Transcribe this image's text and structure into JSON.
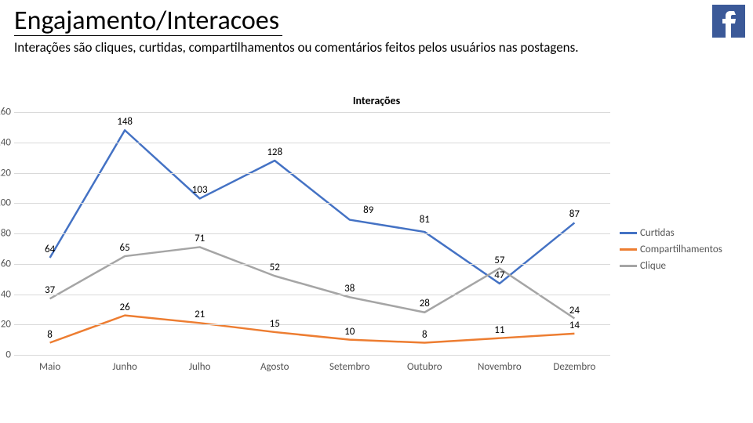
{
  "header": {
    "title": "Engajamento/Interacoes",
    "subtitle": "Interações são cliques, curtidas, compartilhamentos ou comentários feitos pelos usuários nas postagens."
  },
  "logo": {
    "bg": "#3b5998",
    "fg": "#ffffff"
  },
  "chart": {
    "type": "line",
    "title": "Interações",
    "background_color": "#ffffff",
    "grid_color": "#d9d9d9",
    "line_width": 2.5,
    "title_fontsize": 14,
    "label_fontsize": 13,
    "ylim": [
      0,
      160
    ],
    "ytick_step": 20,
    "categories": [
      "Maio",
      "Junho",
      "Julho",
      "Agosto",
      "Setembro",
      "Outubro",
      "Novembro",
      "Dezembro"
    ],
    "series": [
      {
        "name": "Curtidas",
        "color": "#4472c4",
        "values": [
          64,
          148,
          103,
          128,
          89,
          81,
          47,
          87
        ]
      },
      {
        "name": "Compartilhamentos",
        "color": "#ed7d31",
        "values": [
          8,
          26,
          21,
          15,
          10,
          8,
          11,
          14
        ]
      },
      {
        "name": "Clique",
        "color": "#a5a5a5",
        "values": [
          37,
          65,
          71,
          52,
          38,
          28,
          57,
          24
        ]
      }
    ],
    "data_label_nudge": {
      "0,4": [
        24,
        2
      ],
      "0,5": [
        0,
        5
      ],
      "2,5": [
        0,
        1
      ]
    }
  }
}
